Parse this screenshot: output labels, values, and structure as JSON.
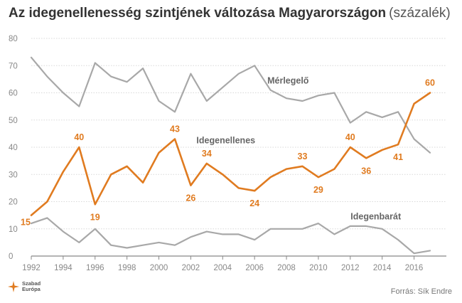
{
  "title": {
    "main": "Az idegenellenesség szintjének változása Magyarországon",
    "unit": "(százalék)"
  },
  "logo_text": [
    "Szabad",
    "Európa"
  ],
  "source": "Forrás: Sík Endre",
  "colors": {
    "orange": "#e07b20",
    "gray": "#a8a8a8",
    "grid": "#d8d8d8",
    "axis": "#888888"
  },
  "chart_data": {
    "type": "line",
    "x": [
      1992,
      1993,
      1994,
      1995,
      1996,
      1997,
      1998,
      1999,
      2000,
      2001,
      2002,
      2003,
      2004,
      2005,
      2006,
      2007,
      2008,
      2009,
      2010,
      2011,
      2012,
      2013,
      2014,
      2015,
      2016,
      2017
    ],
    "x_ticks": [
      1992,
      1994,
      1996,
      1998,
      2000,
      2002,
      2004,
      2006,
      2008,
      2010,
      2012,
      2014,
      2016
    ],
    "ylim": [
      0,
      80
    ],
    "y_ticks": [
      0,
      10,
      20,
      30,
      40,
      50,
      60,
      70,
      80
    ],
    "grid": true,
    "series": [
      {
        "name": "Mérlegelő",
        "color": "#a8a8a8",
        "values": [
          73,
          66,
          60,
          55,
          71,
          66,
          64,
          69,
          57,
          53,
          67,
          57,
          62,
          67,
          70,
          61,
          58,
          57,
          59,
          60,
          49,
          53,
          51,
          53,
          43,
          38
        ]
      },
      {
        "name": "Idegenellenes",
        "color": "#e07b20",
        "values": [
          15,
          20,
          31,
          40,
          19,
          30,
          33,
          27,
          38,
          43,
          26,
          34,
          30,
          25,
          24,
          29,
          32,
          33,
          29,
          32,
          40,
          36,
          39,
          41,
          56,
          60
        ]
      },
      {
        "name": "Idegenbarát",
        "color": "#a8a8a8",
        "values": [
          12,
          14,
          9,
          5,
          10,
          4,
          3,
          4,
          5,
          4,
          7,
          9,
          8,
          8,
          6,
          10,
          10,
          10,
          12,
          8,
          11,
          11,
          10,
          6,
          1,
          2
        ]
      }
    ],
    "data_labels": [
      {
        "series": 1,
        "x": 1992,
        "text": "15"
      },
      {
        "series": 1,
        "x": 1995,
        "text": "40"
      },
      {
        "series": 1,
        "x": 1996,
        "text": "19"
      },
      {
        "series": 1,
        "x": 2001,
        "text": "43"
      },
      {
        "series": 1,
        "x": 2002,
        "text": "26"
      },
      {
        "series": 1,
        "x": 2003,
        "text": "34"
      },
      {
        "series": 1,
        "x": 2006,
        "text": "24"
      },
      {
        "series": 1,
        "x": 2009,
        "text": "33"
      },
      {
        "series": 1,
        "x": 2010,
        "text": "29"
      },
      {
        "series": 1,
        "x": 2012,
        "text": "40"
      },
      {
        "series": 1,
        "x": 2013,
        "text": "36"
      },
      {
        "series": 1,
        "x": 2015,
        "text": "41"
      },
      {
        "series": 1,
        "x": 2017,
        "text": "60"
      }
    ]
  }
}
